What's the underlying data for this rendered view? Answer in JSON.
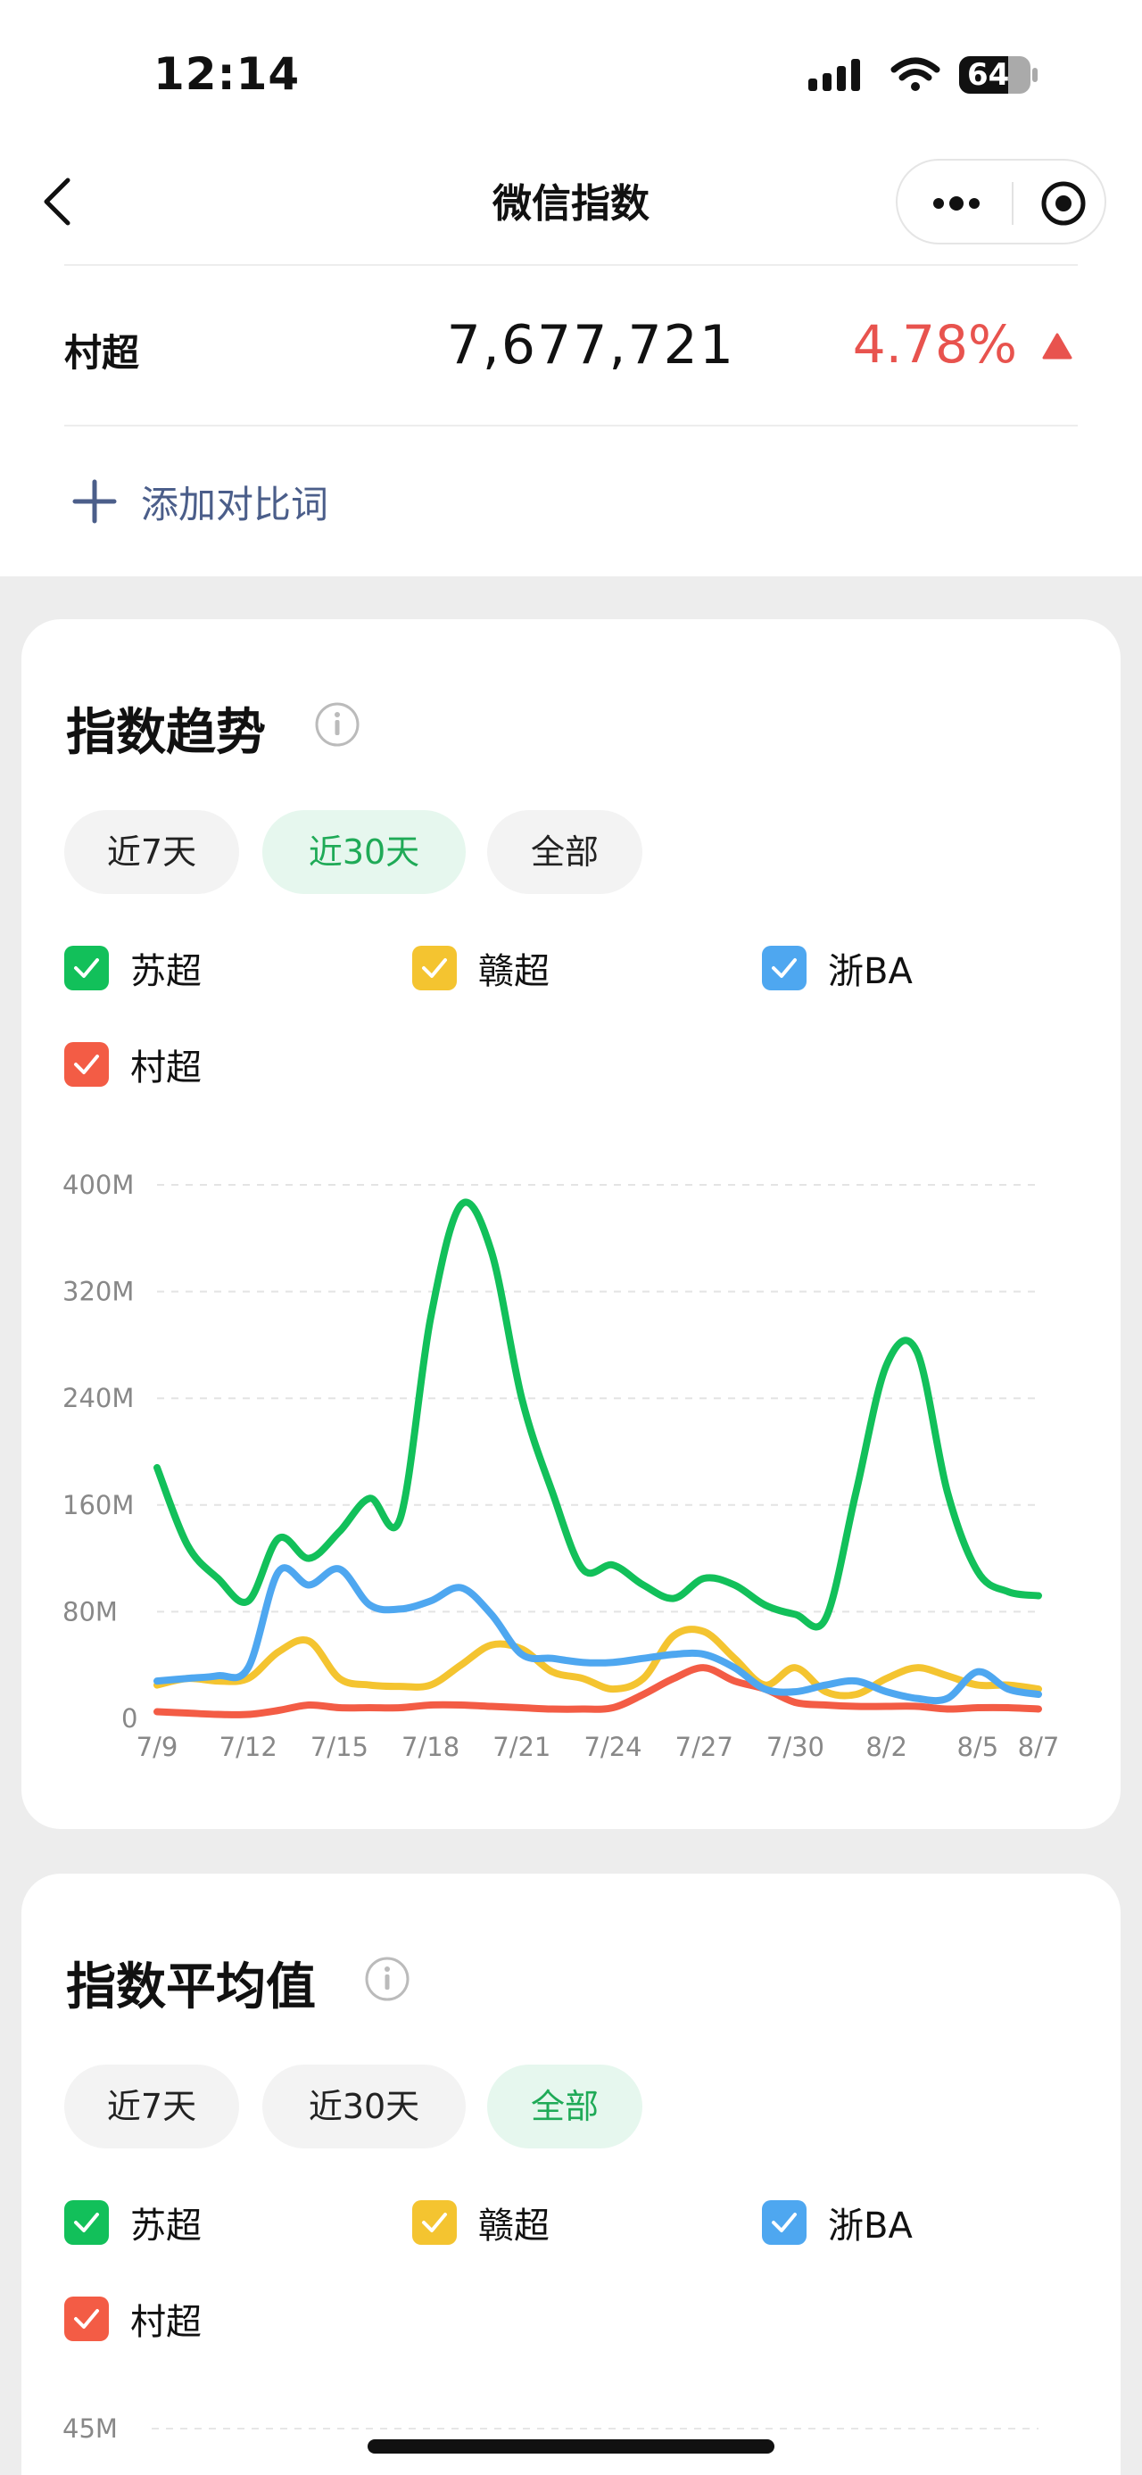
{
  "status_bar": {
    "time": "12:14",
    "battery": "64"
  },
  "nav": {
    "title": "微信指数"
  },
  "keyword": {
    "name": "村超",
    "value": "7,677,721",
    "change": "4.78%"
  },
  "add_compare_label": "添加对比词",
  "trend": {
    "title": "指数趋势",
    "tabs": [
      "近7天",
      "近30天",
      "全部"
    ],
    "active_tab": 1,
    "legend": [
      {
        "name": "苏超",
        "color": "#12c05a"
      },
      {
        "name": "赣超",
        "color": "#f4c430"
      },
      {
        "name": "浙BA",
        "color": "#4ea7f0"
      },
      {
        "name": "村超",
        "color": "#f35c45"
      }
    ]
  },
  "average": {
    "title": "指数平均值",
    "tabs": [
      "近7天",
      "近30天",
      "全部"
    ],
    "active_tab": 2,
    "legend": [
      {
        "name": "苏超",
        "color": "#12c05a"
      },
      {
        "name": "赣超",
        "color": "#f4c430"
      },
      {
        "name": "浙BA",
        "color": "#4ea7f0"
      },
      {
        "name": "村超",
        "color": "#f35c45"
      }
    ],
    "first_tick": "45M"
  },
  "chart_data": {
    "type": "line",
    "x_ticks": [
      "7/9",
      "7/12",
      "7/15",
      "7/18",
      "7/21",
      "7/24",
      "7/27",
      "7/30",
      "8/2",
      "8/5",
      "8/7"
    ],
    "x_dates": [
      "7/9",
      "7/10",
      "7/11",
      "7/12",
      "7/13",
      "7/14",
      "7/15",
      "7/16",
      "7/17",
      "7/18",
      "7/19",
      "7/20",
      "7/21",
      "7/22",
      "7/23",
      "7/24",
      "7/25",
      "7/26",
      "7/27",
      "7/28",
      "7/29",
      "7/30",
      "7/31",
      "8/1",
      "8/2",
      "8/3",
      "8/4",
      "8/5",
      "8/6",
      "8/7"
    ],
    "y_ticks": [
      "0",
      "80M",
      "160M",
      "240M",
      "320M",
      "400M"
    ],
    "ylim": [
      0,
      400
    ],
    "y_unit": "M",
    "grid": true,
    "series": [
      {
        "name": "苏超",
        "color": "#12c05a",
        "values": [
          188,
          130,
          105,
          88,
          135,
          120,
          140,
          165,
          150,
          300,
          385,
          350,
          240,
          170,
          112,
          115,
          100,
          90,
          105,
          100,
          85,
          78,
          75,
          170,
          265,
          275,
          170,
          110,
          95,
          92
        ]
      },
      {
        "name": "赣超",
        "color": "#f4c430",
        "values": [
          25,
          30,
          28,
          30,
          50,
          58,
          30,
          25,
          24,
          25,
          40,
          55,
          52,
          35,
          30,
          22,
          30,
          62,
          65,
          45,
          25,
          38,
          20,
          18,
          30,
          38,
          32,
          25,
          25,
          22
        ]
      },
      {
        "name": "浙BA",
        "color": "#4ea7f0",
        "values": [
          28,
          30,
          32,
          38,
          110,
          100,
          112,
          85,
          82,
          88,
          98,
          78,
          48,
          45,
          42,
          42,
          45,
          48,
          48,
          38,
          22,
          20,
          25,
          28,
          20,
          15,
          15,
          35,
          22,
          18
        ]
      },
      {
        "name": "村超",
        "color": "#f35c45",
        "values": [
          5,
          4,
          3,
          3,
          6,
          10,
          8,
          8,
          8,
          10,
          10,
          9,
          8,
          7,
          7,
          8,
          18,
          30,
          38,
          28,
          22,
          12,
          10,
          9,
          9,
          9,
          7,
          8,
          8,
          7
        ]
      }
    ]
  }
}
